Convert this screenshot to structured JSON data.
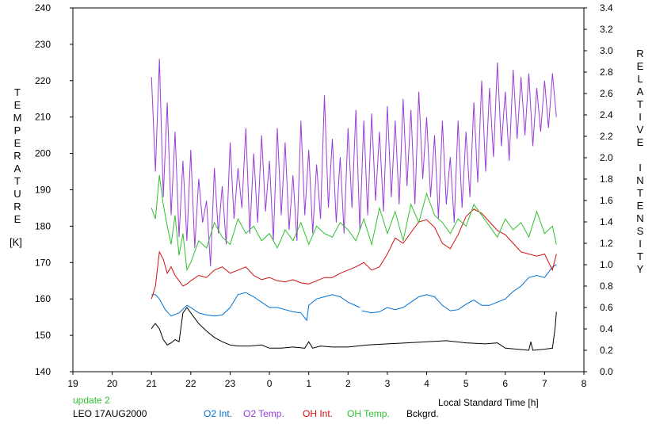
{
  "chart_data": {
    "type": "line",
    "xlabel": "Local Standard Time [h]",
    "ylabel_left_letters": [
      "T",
      "E",
      "M",
      "P",
      "E",
      "R",
      "A",
      "T",
      "U",
      "R",
      "E"
    ],
    "ylabel_left_unit": "[K]",
    "ylabel_right_word1": [
      "R",
      "E",
      "L",
      "A",
      "T",
      "I",
      "V",
      "E"
    ],
    "ylabel_right_word2": [
      "I",
      "N",
      "T",
      "E",
      "N",
      "S",
      "I",
      "T",
      "Y"
    ],
    "x_ticks": [
      "19",
      "20",
      "21",
      "22",
      "23",
      "0",
      "1",
      "2",
      "3",
      "4",
      "5",
      "6",
      "7",
      "8"
    ],
    "xlim": [
      19,
      32
    ],
    "ylim_left": [
      140,
      240
    ],
    "ylim_right": [
      0.0,
      3.4
    ],
    "y_ticks_left": [
      "140",
      "150",
      "160",
      "170",
      "180",
      "190",
      "200",
      "210",
      "220",
      "230",
      "240"
    ],
    "y_ticks_right": [
      "0.0",
      "0.2",
      "0.4",
      "0.6",
      "0.8",
      "1.0",
      "1.2",
      "1.4",
      "1.6",
      "1.8",
      "2.0",
      "2.2",
      "2.4",
      "2.6",
      "2.8",
      "3.0",
      "3.2",
      "3.4"
    ],
    "series": [
      {
        "name": "O2 Int.",
        "axis": "right",
        "color": "#0070d0",
        "x": [
          21.0,
          21.1,
          21.2,
          21.35,
          21.5,
          21.7,
          21.9,
          22.0,
          22.2,
          22.4,
          22.6,
          22.8,
          23.0,
          23.2,
          23.4,
          23.6,
          23.8,
          24.0,
          24.2,
          24.4,
          24.6,
          24.8,
          24.95,
          25.0,
          25.2,
          25.4,
          25.6,
          25.8,
          26.0,
          26.3
        ],
        "y": [
          0.72,
          0.72,
          0.68,
          0.58,
          0.52,
          0.55,
          0.62,
          0.6,
          0.55,
          0.53,
          0.52,
          0.53,
          0.6,
          0.72,
          0.74,
          0.7,
          0.65,
          0.6,
          0.6,
          0.58,
          0.56,
          0.55,
          0.48,
          0.62,
          0.68,
          0.7,
          0.72,
          0.7,
          0.65,
          0.6
        ]
      },
      {
        "name": "O2 Int.",
        "axis": "right",
        "color": "#0070d0",
        "x": [
          26.35,
          26.6,
          26.8,
          27.0,
          27.2,
          27.4,
          27.6,
          27.8,
          28.0,
          28.2,
          28.4,
          28.6,
          28.8,
          29.0,
          29.2,
          29.4,
          29.6,
          29.8,
          30.0,
          30.2,
          30.4,
          30.6,
          30.8,
          31.0,
          31.2,
          31.3
        ],
        "y": [
          0.57,
          0.55,
          0.56,
          0.6,
          0.58,
          0.6,
          0.65,
          0.7,
          0.72,
          0.7,
          0.62,
          0.57,
          0.58,
          0.63,
          0.67,
          0.62,
          0.62,
          0.65,
          0.68,
          0.75,
          0.8,
          0.88,
          0.9,
          0.88,
          0.98,
          1.0
        ]
      },
      {
        "name": "O2 Temp.",
        "axis": "left",
        "color": "#9a3ed8",
        "x": [
          21.0,
          21.1,
          21.2,
          21.3,
          21.4,
          21.5,
          21.6,
          21.7,
          21.8,
          21.9,
          22.0,
          22.1,
          22.2,
          22.3,
          22.4,
          22.5,
          22.6,
          22.7,
          22.8,
          22.9,
          23.0,
          23.1,
          23.2,
          23.3,
          23.4,
          23.5,
          23.6,
          23.7,
          23.8,
          23.9,
          24.0,
          24.1,
          24.2,
          24.3,
          24.4,
          24.5,
          24.6,
          24.7,
          24.8,
          24.9,
          25.0,
          25.1,
          25.2,
          25.3,
          25.4,
          25.5,
          25.6,
          25.7,
          25.8,
          25.9,
          26.0,
          26.1,
          26.2,
          26.3,
          26.4,
          26.5,
          26.6,
          26.7,
          26.8,
          26.9,
          27.0,
          27.1,
          27.2,
          27.3,
          27.4,
          27.5,
          27.6,
          27.7,
          27.8,
          27.9,
          28.0,
          28.1,
          28.2,
          28.3,
          28.4,
          28.5,
          28.6,
          28.7,
          28.8,
          28.9,
          29.0,
          29.1,
          29.2,
          29.3,
          29.4,
          29.5,
          29.6,
          29.7,
          29.8,
          29.9,
          30.0,
          30.1,
          30.2,
          30.3,
          30.4,
          30.5,
          30.6,
          30.7,
          30.8,
          30.9,
          31.0,
          31.1,
          31.2,
          31.3
        ],
        "y": [
          221,
          195,
          226,
          188,
          214,
          183,
          206,
          177,
          198,
          176,
          201,
          174,
          193,
          181,
          187,
          169,
          196,
          178,
          191,
          175,
          203,
          182,
          196,
          185,
          207,
          178,
          200,
          181,
          205,
          184,
          198,
          176,
          207,
          183,
          203,
          179,
          194,
          176,
          209,
          183,
          201,
          178,
          197,
          182,
          216,
          185,
          204,
          181,
          199,
          178,
          207,
          185,
          212,
          179,
          209,
          183,
          211,
          187,
          206,
          184,
          213,
          188,
          209,
          186,
          215,
          191,
          212,
          186,
          217,
          193,
          210,
          188,
          205,
          182,
          209,
          186,
          199,
          181,
          209,
          185,
          206,
          188,
          214,
          192,
          220,
          195,
          218,
          199,
          225,
          202,
          217,
          198,
          223,
          204,
          221,
          205,
          222,
          202,
          218,
          206,
          220,
          207,
          222,
          210
        ]
      },
      {
        "name": "OH Int.",
        "axis": "right",
        "color": "#d01010",
        "x": [
          21.0,
          21.1,
          21.2,
          21.3,
          21.4,
          21.5,
          21.6,
          21.7,
          21.8,
          21.9,
          22.0,
          22.2,
          22.4,
          22.6,
          22.8,
          23.0,
          23.2,
          23.4,
          23.6,
          23.8,
          24.0,
          24.2,
          24.4,
          24.6,
          24.8,
          25.0,
          25.2,
          25.4,
          25.6,
          25.8,
          26.0,
          26.2,
          26.4,
          26.6,
          26.8,
          27.0,
          27.2,
          27.4,
          27.6,
          27.8,
          28.0,
          28.2,
          28.4,
          28.6,
          28.8,
          29.0,
          29.2,
          29.4,
          29.6,
          29.8,
          30.0,
          30.2,
          30.4,
          30.6,
          30.8,
          31.0,
          31.2,
          31.3
        ],
        "y": [
          0.68,
          0.8,
          1.12,
          1.05,
          0.92,
          0.98,
          0.9,
          0.85,
          0.8,
          0.82,
          0.85,
          0.9,
          0.88,
          0.95,
          0.98,
          0.92,
          0.95,
          0.98,
          0.9,
          0.86,
          0.88,
          0.85,
          0.84,
          0.86,
          0.83,
          0.82,
          0.85,
          0.88,
          0.88,
          0.92,
          0.95,
          0.98,
          1.02,
          0.95,
          0.98,
          1.1,
          1.25,
          1.2,
          1.3,
          1.4,
          1.42,
          1.35,
          1.2,
          1.15,
          1.28,
          1.45,
          1.52,
          1.48,
          1.4,
          1.32,
          1.28,
          1.2,
          1.12,
          1.1,
          1.08,
          1.1,
          0.95,
          1.1
        ]
      },
      {
        "name": "OH Temp.",
        "axis": "left",
        "color": "#30c030",
        "x": [
          21.0,
          21.1,
          21.2,
          21.3,
          21.4,
          21.5,
          21.6,
          21.7,
          21.8,
          21.9,
          22.0,
          22.2,
          22.4,
          22.6,
          22.8,
          23.0,
          23.2,
          23.4,
          23.6,
          23.8,
          24.0,
          24.2,
          24.4,
          24.6,
          24.8,
          25.0,
          25.2,
          25.4,
          25.6,
          25.8,
          26.0,
          26.2,
          26.4,
          26.6,
          26.8,
          27.0,
          27.2,
          27.4,
          27.6,
          27.8,
          28.0,
          28.2,
          28.4,
          28.6,
          28.8,
          29.0,
          29.2,
          29.4,
          29.6,
          29.8,
          30.0,
          30.2,
          30.4,
          30.6,
          30.8,
          31.0,
          31.2,
          31.3
        ],
        "y": [
          185,
          182,
          194,
          186,
          180,
          175,
          183,
          172,
          178,
          168,
          170,
          176,
          174,
          181,
          177,
          175,
          182,
          178,
          180,
          176,
          178,
          174,
          179,
          176,
          181,
          175,
          180,
          178,
          177,
          181,
          179,
          176,
          182,
          175,
          185,
          178,
          184,
          176,
          186,
          181,
          189,
          183,
          181,
          178,
          182,
          180,
          186,
          183,
          180,
          177,
          182,
          179,
          181,
          177,
          184,
          178,
          180,
          175
        ]
      },
      {
        "name": "Bckgrd.",
        "axis": "right",
        "color": "#000000",
        "x": [
          21.0,
          21.05,
          21.1,
          21.2,
          21.3,
          21.4,
          21.5,
          21.6,
          21.7,
          21.8,
          21.9,
          22.0,
          22.2,
          22.4,
          22.6,
          22.8,
          23.0,
          23.2,
          23.5,
          23.8,
          24.0,
          24.3,
          24.6,
          24.9,
          25.0,
          25.1,
          25.3,
          25.6,
          26.0,
          26.5,
          27.0,
          27.5,
          28.0,
          28.5,
          29.0,
          29.5,
          29.8,
          30.0,
          30.3,
          30.6,
          30.65,
          30.7,
          31.0,
          31.2,
          31.27,
          31.3
        ],
        "y": [
          0.4,
          0.43,
          0.45,
          0.4,
          0.3,
          0.25,
          0.27,
          0.3,
          0.28,
          0.55,
          0.6,
          0.55,
          0.45,
          0.38,
          0.32,
          0.28,
          0.25,
          0.24,
          0.24,
          0.25,
          0.22,
          0.22,
          0.23,
          0.22,
          0.28,
          0.22,
          0.24,
          0.23,
          0.23,
          0.25,
          0.26,
          0.27,
          0.28,
          0.29,
          0.27,
          0.26,
          0.27,
          0.22,
          0.21,
          0.2,
          0.28,
          0.2,
          0.21,
          0.22,
          0.42,
          0.56
        ]
      }
    ]
  },
  "footer": {
    "update": "update 2",
    "station": "LEO 17AUG2000",
    "legend": [
      {
        "label": "O2 Int.",
        "color": "#0070d0"
      },
      {
        "label": "O2 Temp.",
        "color": "#9a3ed8"
      },
      {
        "label": "OH Int.",
        "color": "#d01010"
      },
      {
        "label": "OH Temp.",
        "color": "#30c030"
      },
      {
        "label": "Bckgrd.",
        "color": "#000000"
      }
    ]
  }
}
